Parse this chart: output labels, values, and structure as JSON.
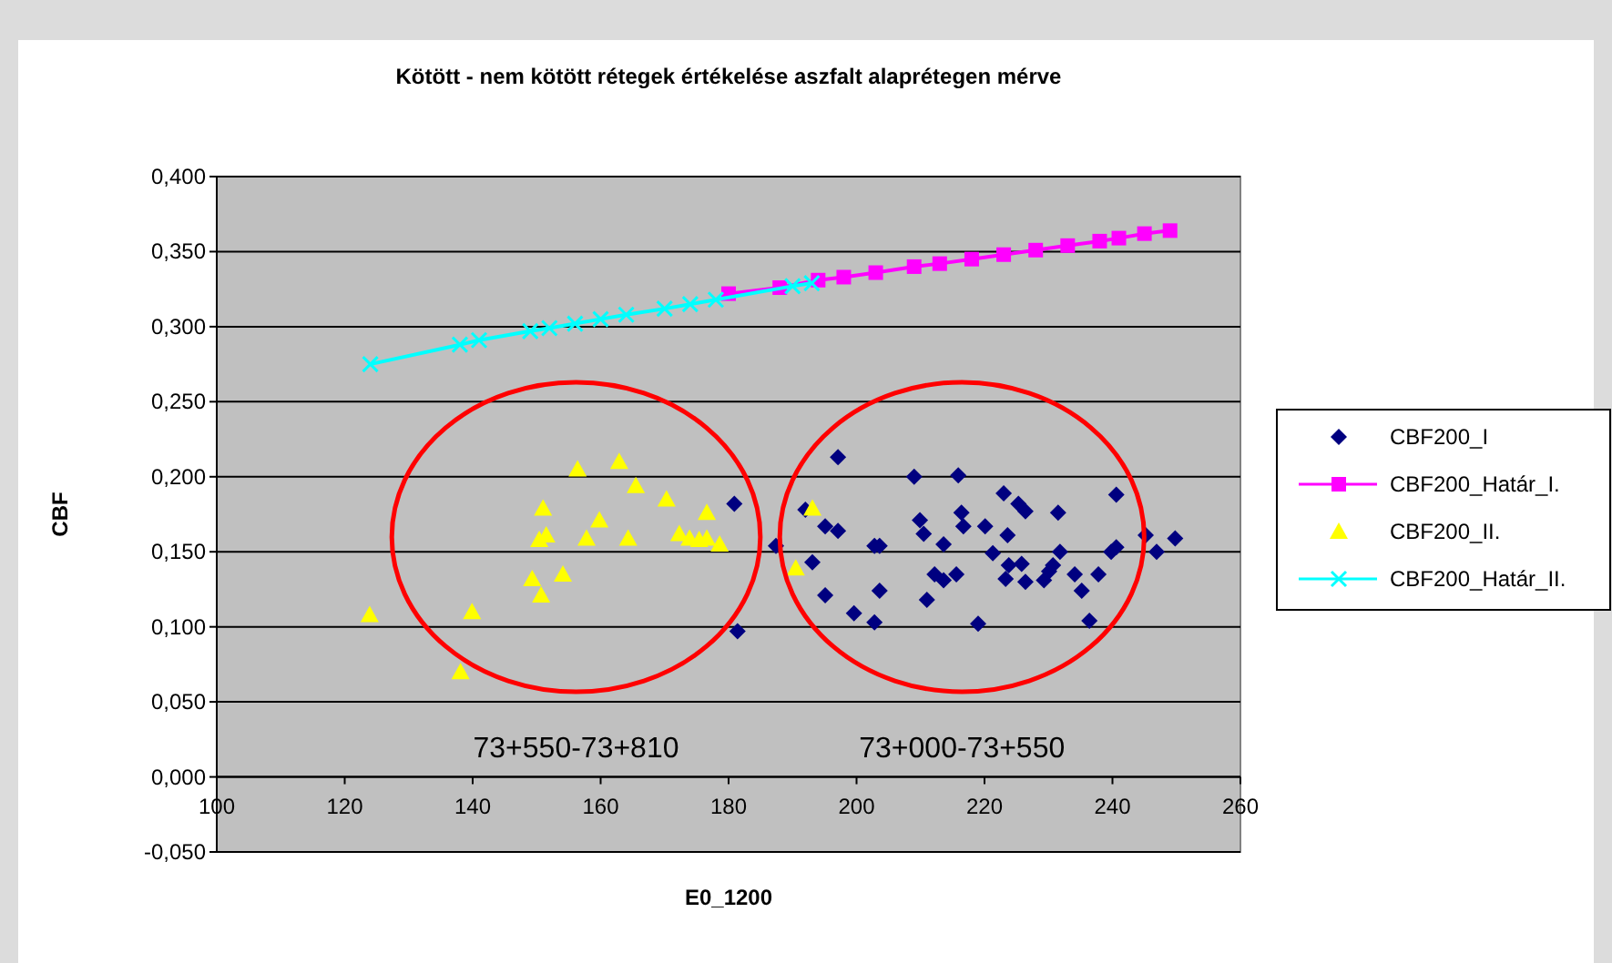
{
  "chart_data": {
    "type": "scatter",
    "title": "Kötött - nem kötött rétegek értékelése aszfalt alaprétegen mérve",
    "xlabel": "E0_1200",
    "ylabel": "CBF",
    "xlim": [
      100,
      260
    ],
    "xticks": [
      100,
      120,
      140,
      160,
      180,
      200,
      220,
      240,
      260
    ],
    "ylim": [
      -0.05,
      0.4
    ],
    "yticks": [
      {
        "value": -0.05,
        "label": "-0,050"
      },
      {
        "value": 0,
        "label": "0,000"
      },
      {
        "value": 0.05,
        "label": "0,050"
      },
      {
        "value": 0.1,
        "label": "0,100"
      },
      {
        "value": 0.15,
        "label": "0,150"
      },
      {
        "value": 0.2,
        "label": "0,200"
      },
      {
        "value": 0.25,
        "label": "0,250"
      },
      {
        "value": 0.3,
        "label": "0,300"
      },
      {
        "value": 0.35,
        "label": "0,350"
      },
      {
        "value": 0.4,
        "label": "0,400"
      }
    ],
    "grid": "y",
    "legend": "right",
    "annotations": [
      "73+550-73+810",
      "73+000-73+550"
    ],
    "series": [
      {
        "name": "CBF200_I",
        "marker": "diamond",
        "color": "#000080",
        "x": [
          180.9,
          181.4,
          187.4,
          197.1,
          192.0,
          195.1,
          197.1,
          193.1,
          195.1,
          199.6,
          202.8,
          203.6,
          203.6,
          202.8,
          209.0,
          209.9,
          210.5,
          211.0,
          212.2,
          213.6,
          213.6,
          215.6,
          215.9,
          216.4,
          216.7,
          219.0,
          220.1,
          221.3,
          223.0,
          223.6,
          223.3,
          223.8,
          225.8,
          225.3,
          226.4,
          226.4,
          229.3,
          230.1,
          230.7,
          231.5,
          231.8,
          234.1,
          235.2,
          236.4,
          237.8,
          239.8,
          240.6,
          240.6,
          245.2,
          246.9,
          249.8
        ],
        "values": [
          0.182,
          0.097,
          0.154,
          0.213,
          0.178,
          0.167,
          0.164,
          0.143,
          0.121,
          0.109,
          0.154,
          0.154,
          0.124,
          0.103,
          0.2,
          0.171,
          0.162,
          0.118,
          0.135,
          0.131,
          0.155,
          0.135,
          0.201,
          0.176,
          0.167,
          0.102,
          0.167,
          0.149,
          0.189,
          0.161,
          0.132,
          0.141,
          0.142,
          0.182,
          0.177,
          0.13,
          0.131,
          0.137,
          0.141,
          0.176,
          0.15,
          0.135,
          0.124,
          0.104,
          0.135,
          0.15,
          0.153,
          0.188,
          0.161,
          0.15,
          0.159
        ]
      },
      {
        "name": "CBF200_Határ_I.",
        "type": "line",
        "marker": "square",
        "line_style": "solid",
        "color": "#ff00ff",
        "x": [
          180,
          188,
          194,
          198,
          203,
          209,
          213,
          218,
          223,
          228,
          233,
          238,
          241,
          245,
          249
        ],
        "values": [
          0.322,
          0.326,
          0.331,
          0.333,
          0.336,
          0.34,
          0.342,
          0.345,
          0.348,
          0.351,
          0.354,
          0.357,
          0.359,
          0.362,
          0.364
        ]
      },
      {
        "name": "CBF200_II.",
        "marker": "triangle",
        "color": "#ffff00",
        "x": [
          123.9,
          138.1,
          139.9,
          149.3,
          150.7,
          150.4,
          151.5,
          151.0,
          154.1,
          156.4,
          157.8,
          159.8,
          162.9,
          164.3,
          165.5,
          170.3,
          172.3,
          173.9,
          175.4,
          176.6,
          176.6,
          178.6,
          193.1,
          190.5
        ],
        "values": [
          0.108,
          0.07,
          0.11,
          0.132,
          0.121,
          0.158,
          0.161,
          0.179,
          0.135,
          0.205,
          0.159,
          0.171,
          0.21,
          0.159,
          0.194,
          0.185,
          0.162,
          0.159,
          0.158,
          0.176,
          0.159,
          0.155,
          0.179,
          0.139
        ]
      },
      {
        "name": "CBF200_Határ_II.",
        "type": "line",
        "marker": "cross",
        "line_style": "solid",
        "color": "#00ffff",
        "x": [
          124,
          138,
          141,
          149,
          152,
          156,
          160,
          164,
          170,
          174,
          178,
          190,
          193
        ],
        "values": [
          0.275,
          0.288,
          0.291,
          0.297,
          0.299,
          0.302,
          0.305,
          0.308,
          0.312,
          0.315,
          0.318,
          0.327,
          0.329
        ]
      }
    ]
  }
}
